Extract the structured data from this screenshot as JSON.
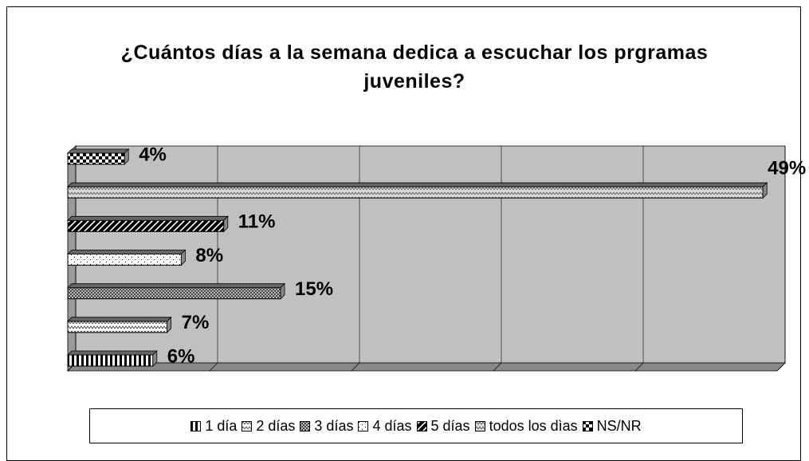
{
  "chart_data": {
    "type": "bar",
    "orientation": "horizontal",
    "title": "¿Cuántos días a la semana dedica a escuchar los prgramas juveniles?",
    "categories": [
      "1 día",
      "2 días",
      "3 días",
      "4 días",
      "5 días",
      "todos los dìas",
      "NS/NR"
    ],
    "values": [
      6,
      7,
      15,
      8,
      11,
      49,
      4
    ],
    "value_labels": [
      "6%",
      "7%",
      "15%",
      "8%",
      "11%",
      "49%",
      "4%"
    ],
    "xlim": [
      0,
      50
    ],
    "xticks": [
      0,
      10,
      20,
      30,
      40,
      50
    ],
    "grid": true,
    "legend": "bottom"
  }
}
